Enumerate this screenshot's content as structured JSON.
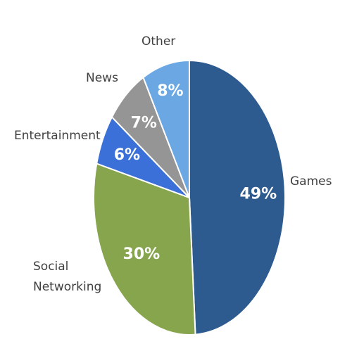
{
  "chart_data": {
    "type": "pie",
    "categories": [
      "Games",
      "Social Networking",
      "Entertainment",
      "News",
      "Other"
    ],
    "values": [
      49,
      30,
      6,
      7,
      8
    ],
    "value_labels": [
      "49%",
      "30%",
      "6%",
      "7%",
      "8%"
    ],
    "colors": [
      "#2d5b8f",
      "#86a54d",
      "#3a70d8",
      "#959595",
      "#6aa7e3"
    ]
  }
}
